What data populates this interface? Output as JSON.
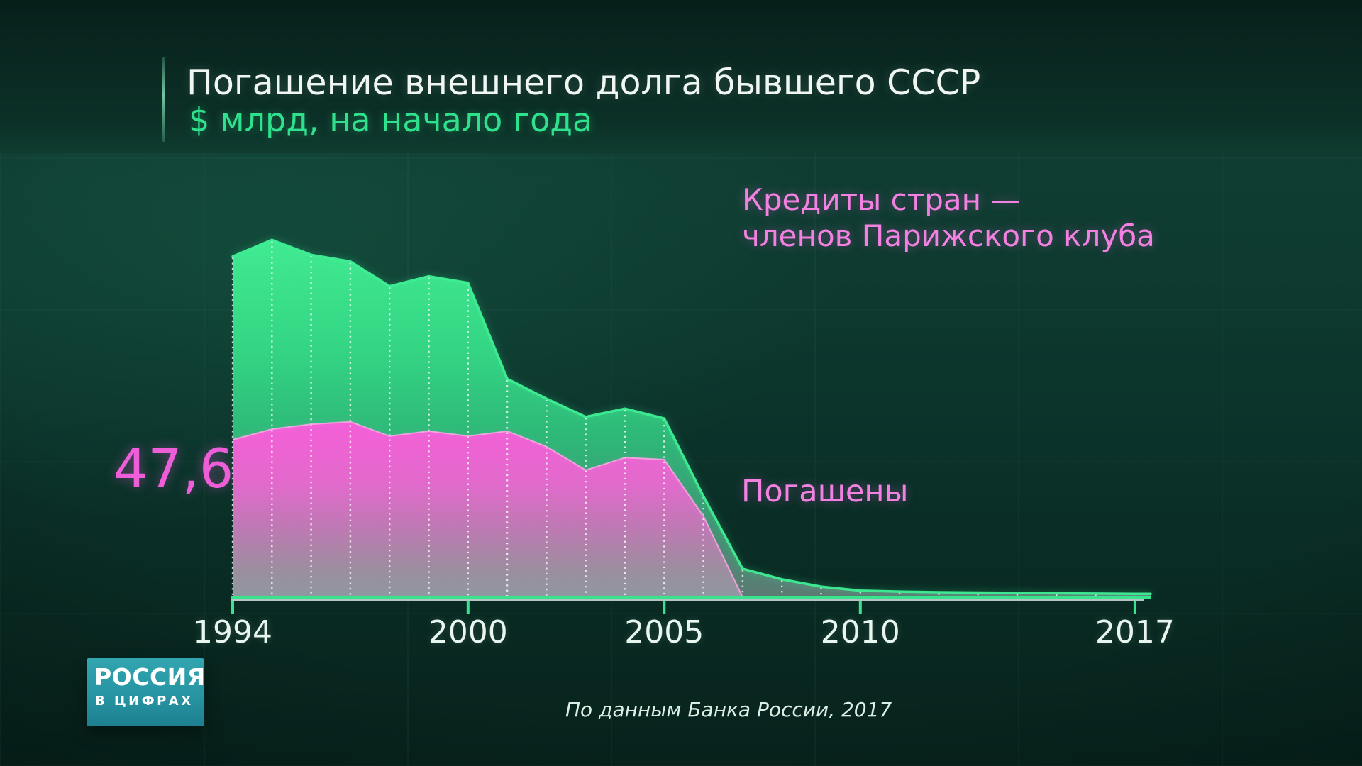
{
  "header": {
    "title": "Погашение внешнего долга бывшего СССР",
    "subtitle": "$ млрд, на начало года"
  },
  "legend": {
    "paris_club_line1": "Кредиты стран —",
    "paris_club_line2": "членов Парижского клуба",
    "repaid_annotation": "Погашены",
    "start_value": "47,6"
  },
  "x_axis": {
    "tick_labels": [
      "1994",
      "2000",
      "2005",
      "2010",
      "2017"
    ]
  },
  "footer": {
    "logo_line1": "РОССИЯ",
    "logo_line2": "В ЦИФРАХ",
    "source": "По данным Банка России, 2017"
  },
  "colors": {
    "background_teal": "#0c352b",
    "title_text": "#f0f7f3",
    "subtitle_green": "#2fe08c",
    "magenta_text": "#f281e2",
    "start_value_pink": "#ef5ed9",
    "axis_label_text": "#e8f6f0",
    "green_area_top": "#41ea92",
    "green_area_bottom": "#5d7a74",
    "green_line": "#3ff095",
    "magenta_area_top": "#f55ed8",
    "magenta_area_bottom": "#8f98a0",
    "magenta_line": "#ffa9e6",
    "axis_line_green": "#38e58e",
    "axis_line_gray": "#c9d4d6",
    "dotted_line": "#ffffff",
    "logo_teal": "#2a98a4"
  },
  "chart_data": {
    "type": "area",
    "title": "Погашение внешнего долга бывшего СССР",
    "unit_label": "$ млрд, на начало года",
    "x": [
      1994,
      1995,
      1996,
      1997,
      1998,
      1999,
      2000,
      2001,
      2002,
      2003,
      2004,
      2005,
      2006,
      2007,
      2008,
      2009,
      2010,
      2011,
      2012,
      2013,
      2014,
      2015,
      2016,
      2017
    ],
    "x_ticks": [
      1994,
      2000,
      2005,
      2010,
      2017
    ],
    "ylim": [
      0,
      115
    ],
    "grid": "dotted-vertical-per-year",
    "legend_position": "overlay-right",
    "series": [
      {
        "id": "ussr_debt_total",
        "label": "",
        "color": "#41ea92",
        "values": [
          103,
          108,
          103.5,
          101.5,
          94,
          97,
          95,
          66,
          60,
          54.5,
          57,
          54,
          30.5,
          8.6,
          5.4,
          3.2,
          2.0,
          1.7,
          1.5,
          1.4,
          1.3,
          1.2,
          1.1,
          1.0
        ]
      },
      {
        "id": "paris_club_credits",
        "label": "Кредиты стран — членов Парижского клуба",
        "color": "#f55ed8",
        "values": [
          47.6,
          50.8,
          52.3,
          53.0,
          48.7,
          50.2,
          48.7,
          50.2,
          45.5,
          38.4,
          42.2,
          41.6,
          24.5,
          0
        ]
      }
    ],
    "annotations": [
      {
        "text": "Погашены",
        "refers_to": "paris_club_credits"
      },
      {
        "text": "47,6",
        "refers_to": "paris_club_credits",
        "x": 1994
      }
    ]
  }
}
